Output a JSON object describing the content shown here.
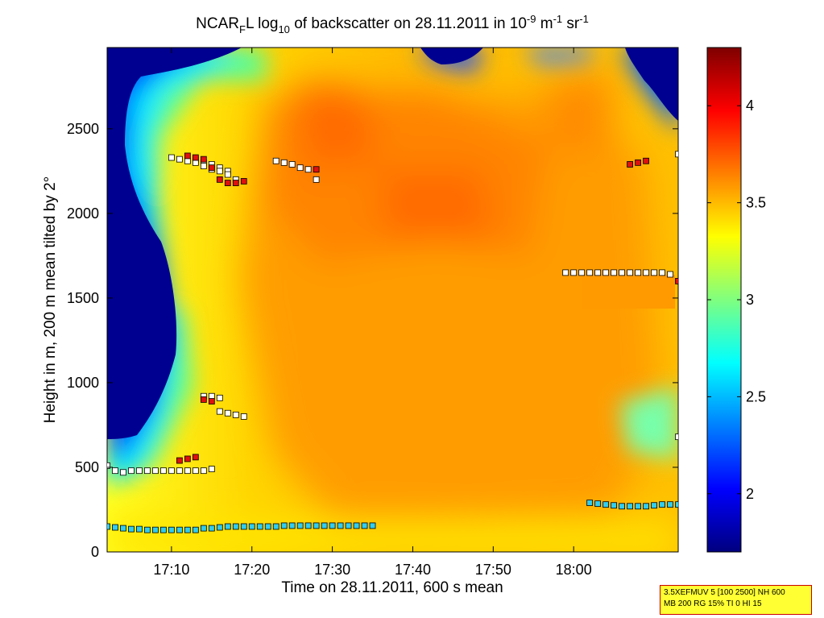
{
  "chart_data": {
    "type": "heatmap",
    "title_parts": [
      "NCAR",
      "F",
      "L log",
      "10",
      " of backscatter on 28.11.2011 in 10",
      "-9",
      " m",
      "-1",
      " sr",
      "-1"
    ],
    "xlabel": "Time on 28.11.2011, 600 s mean",
    "ylabel": "Height in m, 200 m mean tilted by 2°",
    "x_unit": "minutes after 17:00 on 28.11.2011",
    "xlim": [
      2,
      73
    ],
    "ylim": [
      0,
      2980
    ],
    "x_ticks": [
      {
        "value": 10,
        "label": "17:10"
      },
      {
        "value": 20,
        "label": "17:20"
      },
      {
        "value": 30,
        "label": "17:30"
      },
      {
        "value": 40,
        "label": "17:40"
      },
      {
        "value": 50,
        "label": "17:50"
      },
      {
        "value": 60,
        "label": "18:00"
      }
    ],
    "y_ticks": [
      0,
      500,
      1000,
      1500,
      2000,
      2500
    ],
    "colorbar": {
      "range": [
        1.7,
        4.3
      ],
      "ticks": [
        2,
        2.5,
        3,
        3.5,
        4
      ],
      "colormap": "jet"
    },
    "field_description": "log10 backscatter field; low values (~1.7) in dark blue at left edge below 2500 m and along top edge, maximum (~3.9) near 17:25-17:40 at 2000-2600 m",
    "series": [
      {
        "marker_color": "#ffffff",
        "points": [
          [
            2,
            510
          ],
          [
            3,
            480
          ],
          [
            4,
            470
          ],
          [
            5,
            480
          ],
          [
            6,
            480
          ],
          [
            7,
            480
          ],
          [
            8,
            480
          ],
          [
            9,
            480
          ],
          [
            10,
            480
          ],
          [
            11,
            480
          ],
          [
            12,
            480
          ],
          [
            13,
            480
          ],
          [
            14,
            480
          ],
          [
            15,
            490
          ],
          [
            14,
            920
          ],
          [
            15,
            920
          ],
          [
            16,
            910
          ],
          [
            16,
            830
          ],
          [
            17,
            820
          ],
          [
            18,
            810
          ],
          [
            19,
            800
          ],
          [
            13,
            2320
          ],
          [
            14,
            2300
          ],
          [
            15,
            2290
          ],
          [
            16,
            2270
          ],
          [
            17,
            2250
          ],
          [
            18,
            2200
          ],
          [
            23,
            2310
          ],
          [
            24,
            2300
          ],
          [
            25,
            2290
          ],
          [
            26,
            2270
          ],
          [
            27,
            2260
          ],
          [
            28,
            2200
          ],
          [
            10,
            2330
          ],
          [
            11,
            2320
          ],
          [
            12,
            2310
          ],
          [
            13,
            2300
          ],
          [
            14,
            2280
          ],
          [
            15,
            2260
          ],
          [
            16,
            2250
          ],
          [
            17,
            2230
          ],
          [
            59,
            1650
          ],
          [
            60,
            1650
          ],
          [
            61,
            1650
          ],
          [
            62,
            1650
          ],
          [
            63,
            1650
          ],
          [
            64,
            1650
          ],
          [
            65,
            1650
          ],
          [
            66,
            1650
          ],
          [
            67,
            1650
          ],
          [
            68,
            1650
          ],
          [
            69,
            1650
          ],
          [
            70,
            1650
          ],
          [
            71,
            1650
          ],
          [
            72,
            1640
          ],
          [
            73,
            2350
          ],
          [
            73,
            680
          ]
        ]
      },
      {
        "marker_color": "#dd1111",
        "points": [
          [
            11,
            540
          ],
          [
            12,
            550
          ],
          [
            13,
            560
          ],
          [
            14,
            900
          ],
          [
            15,
            890
          ],
          [
            12,
            2340
          ],
          [
            13,
            2330
          ],
          [
            14,
            2320
          ],
          [
            15,
            2270
          ],
          [
            16,
            2200
          ],
          [
            17,
            2180
          ],
          [
            18,
            2180
          ],
          [
            19,
            2190
          ],
          [
            28,
            2260
          ],
          [
            67,
            2290
          ],
          [
            68,
            2300
          ],
          [
            69,
            2310
          ],
          [
            73,
            1600
          ]
        ]
      },
      {
        "marker_color": "#33ccee",
        "points": [
          [
            2,
            150
          ],
          [
            3,
            145
          ],
          [
            4,
            140
          ],
          [
            5,
            135
          ],
          [
            6,
            135
          ],
          [
            7,
            130
          ],
          [
            8,
            130
          ],
          [
            9,
            130
          ],
          [
            10,
            130
          ],
          [
            11,
            130
          ],
          [
            12,
            130
          ],
          [
            13,
            130
          ],
          [
            14,
            140
          ],
          [
            15,
            140
          ],
          [
            16,
            145
          ],
          [
            17,
            150
          ],
          [
            18,
            150
          ],
          [
            19,
            150
          ],
          [
            20,
            150
          ],
          [
            21,
            150
          ],
          [
            22,
            150
          ],
          [
            23,
            150
          ],
          [
            24,
            155
          ],
          [
            25,
            155
          ],
          [
            26,
            155
          ],
          [
            27,
            155
          ],
          [
            28,
            155
          ],
          [
            29,
            155
          ],
          [
            30,
            155
          ],
          [
            31,
            155
          ],
          [
            32,
            155
          ],
          [
            33,
            155
          ],
          [
            34,
            155
          ],
          [
            35,
            155
          ],
          [
            62,
            290
          ],
          [
            63,
            285
          ],
          [
            64,
            280
          ],
          [
            65,
            275
          ],
          [
            66,
            270
          ],
          [
            67,
            270
          ],
          [
            68,
            270
          ],
          [
            69,
            270
          ],
          [
            70,
            275
          ],
          [
            71,
            280
          ],
          [
            72,
            280
          ],
          [
            73,
            280
          ]
        ]
      }
    ]
  },
  "info_box": {
    "line1": "3.5XEFMUV 5 [100 2500] NH 600",
    "line2": "MB 200 RG 15% TI 0 HI 15"
  }
}
